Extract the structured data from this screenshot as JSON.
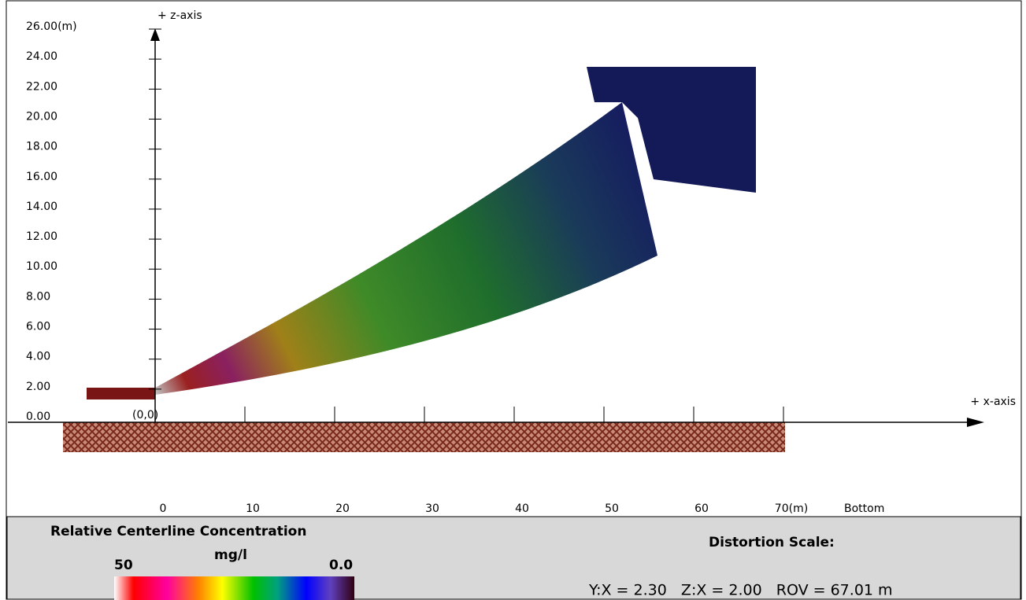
{
  "chart_data": {
    "type": "plume",
    "z_axis_label": "+ z-axis",
    "x_axis_label": "+ x-axis",
    "origin_label": "(0,0)",
    "bottom_label": "Bottom",
    "xlim": [
      0,
      70
    ],
    "ylim": [
      0,
      26
    ],
    "yticks": [
      {
        "value": 0,
        "label": "0.00"
      },
      {
        "value": 2,
        "label": "2.00"
      },
      {
        "value": 4,
        "label": "4.00"
      },
      {
        "value": 6,
        "label": "6.00"
      },
      {
        "value": 8,
        "label": "8.00"
      },
      {
        "value": 10,
        "label": "10.00"
      },
      {
        "value": 12,
        "label": "12.00"
      },
      {
        "value": 14,
        "label": "14.00"
      },
      {
        "value": 16,
        "label": "16.00"
      },
      {
        "value": 18,
        "label": "18.00"
      },
      {
        "value": 20,
        "label": "20.00"
      },
      {
        "value": 22,
        "label": "22.00"
      },
      {
        "value": 24,
        "label": "24.00"
      },
      {
        "value": 26,
        "label": "26.00(m)"
      }
    ],
    "xticks": [
      0,
      10,
      20,
      30,
      40,
      50,
      60,
      {
        "value": 70,
        "label": "70(m)"
      }
    ],
    "legend": {
      "title": "Relative Centerline Concentration",
      "unit": "mg/l",
      "max_label": "50",
      "min_label": "0.0"
    },
    "distortion": {
      "title": "Distortion Scale:",
      "ratios": "Y:X = 2.30   Z:X = 2.00   ROV = 67.01 m"
    }
  }
}
